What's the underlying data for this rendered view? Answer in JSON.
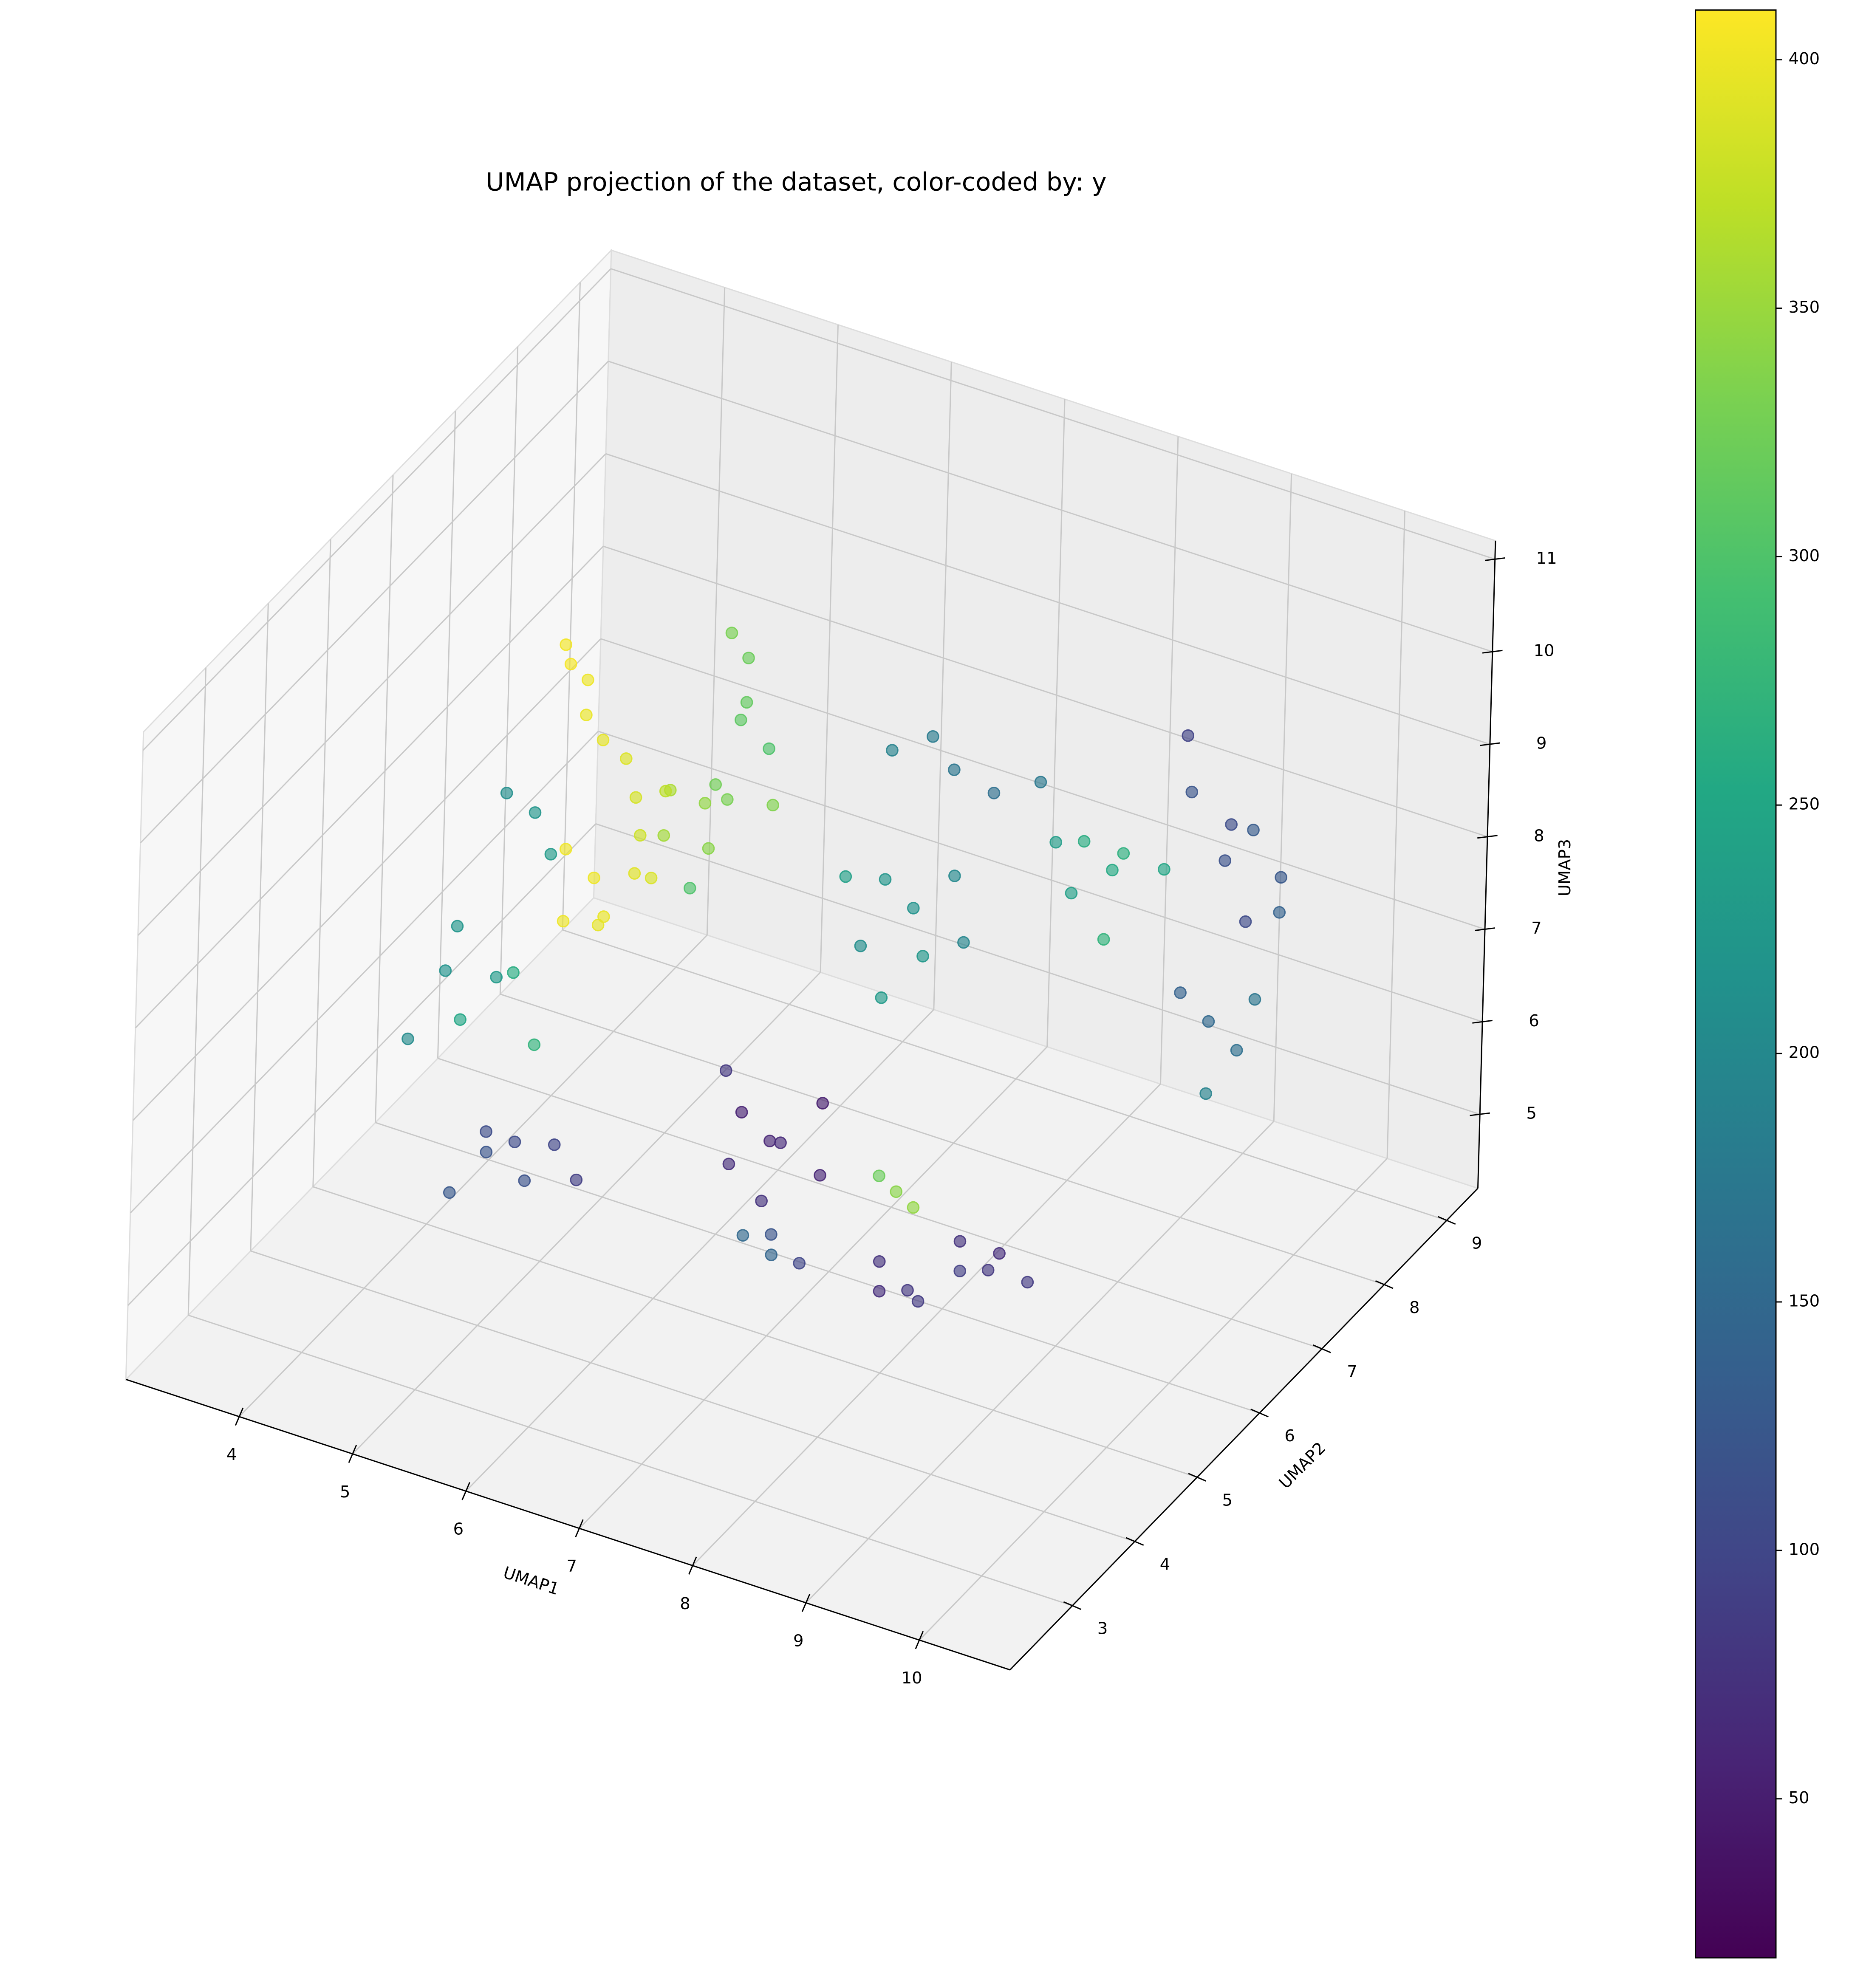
{
  "chart_data": {
    "type": "scatter3d",
    "title": "UMAP projection of the dataset, color-coded by: y",
    "xlabel": "UMAP1",
    "ylabel": "UMAP2",
    "zlabel": "UMAP3",
    "xlim": [
      3.0,
      10.8
    ],
    "ylim": [
      2.0,
      9.5
    ],
    "zlim": [
      4.2,
      11.2
    ],
    "xticks": [
      4,
      5,
      6,
      7,
      8,
      9,
      10
    ],
    "yticks": [
      3,
      4,
      5,
      6,
      7,
      8,
      9
    ],
    "zticks": [
      5,
      6,
      7,
      8,
      9,
      10,
      11
    ],
    "colormap": "viridis",
    "clim": [
      18,
      410
    ],
    "cticks": [
      50,
      100,
      150,
      200,
      250,
      300,
      350,
      400
    ],
    "grid": true,
    "x": [
      4.6,
      4.7,
      4.8,
      4.9,
      5.0,
      5.2,
      4.5,
      5.3,
      4.6,
      4.8,
      5.0,
      4.9,
      5.1,
      4.7,
      5.3,
      6.0,
      6.1,
      6.2,
      6.1,
      6.3,
      6.0,
      6.4,
      5.5,
      5.7,
      5.9,
      5.4,
      6.0,
      5.8,
      5.3,
      4.2,
      4.5,
      4.3,
      4.7,
      4.0,
      4.9,
      3.9,
      4.6,
      4.8,
      5.0,
      4.5,
      4.7,
      4.9,
      4.4,
      5.1,
      4.3,
      5.3,
      6.2,
      6.4,
      6.6,
      6.1,
      6.8,
      6.5,
      6.0,
      6.9,
      7.4,
      7.6,
      7.8,
      7.2,
      7.9,
      7.5,
      8.1,
      7.0,
      6.9,
      7.2,
      7.5,
      7.8,
      8.1,
      8.6,
      8.8,
      9.0,
      8.5,
      9.2,
      8.9,
      8.3,
      9.0,
      9.3,
      9.6,
      9.8,
      9.2,
      9.5,
      9.9,
      8.9,
      9.2,
      9.4,
      9.0,
      9.6,
      9.3,
      9.2,
      9.4,
      9.6,
      9.1,
      9.8,
      8.5,
      8.7,
      8.9,
      8.4,
      7.3,
      7.5,
      7.6,
      7.8,
      8.1,
      8.2,
      8.0
    ],
    "y": [
      6,
      6.1,
      5.9,
      6,
      6.2,
      6,
      6.1,
      5.9,
      6,
      6.1,
      5.9,
      6,
      6.2,
      5.8,
      6.1,
      6,
      6.1,
      5.9,
      6,
      6.1,
      5.8,
      6,
      6,
      6.2,
      5.9,
      6.1,
      6,
      5.8,
      6.3,
      5,
      5.1,
      4.9,
      5,
      5.2,
      5,
      4.8,
      5,
      5.1,
      5,
      5,
      5.1,
      4.9,
      5.2,
      5,
      4.8,
      5,
      6,
      6.1,
      5.9,
      6,
      6.2,
      5.8,
      6.1,
      6,
      6,
      6.1,
      5.9,
      6,
      6.2,
      5.8,
      6,
      6.1,
      7,
      7.1,
      6.9,
      7,
      7.2,
      7,
      7.1,
      6.9,
      7,
      7.2,
      6.8,
      7.1,
      8,
      8.1,
      7.9,
      8,
      8.2,
      8,
      7.8,
      8.1,
      8,
      8.1,
      7.9,
      8,
      7.8,
      4,
      4.1,
      3.9,
      4.2,
      4,
      4,
      4.1,
      3.9,
      4.2,
      4,
      4.1,
      3.9,
      4,
      5,
      5.1,
      4.9
    ],
    "z": [
      9.8,
      9.6,
      9.4,
      9.1,
      8.8,
      8.6,
      9.9,
      8.3,
      7.8,
      7.5,
      7.3,
      7.1,
      7.6,
      7.2,
      7.7,
      10.7,
      10.4,
      10.1,
      9.8,
      9.5,
      9.2,
      9.0,
      8.8,
      8.6,
      8.4,
      8.2,
      8.9,
      8.0,
      8.5,
      7.5,
      7.0,
      6.6,
      7.2,
      6.8,
      6.5,
      6.3,
      9.1,
      8.9,
      8.6,
      5.4,
      5.3,
      5.1,
      5.0,
      5.5,
      4.8,
      5.2,
      5.6,
      5.3,
      5.5,
      5.0,
      5.8,
      4.9,
      5.9,
      5.2,
      8.6,
      8.3,
      8.0,
      7.8,
      8.7,
      7.5,
      8.2,
      8.4,
      9.1,
      9.3,
      9.2,
      9.0,
      9.1,
      8.8,
      8.5,
      8.9,
      8.2,
      8.6,
      8.0,
      8.6,
      8.8,
      8.5,
      8.7,
      8.2,
      8.0,
      7.6,
      8.0,
      9.3,
      6.4,
      6.1,
      6.7,
      6.8,
      5.8,
      6.8,
      6.5,
      6.9,
      6.3,
      6.6,
      6.3,
      6.0,
      6.1,
      5.8,
      6.1,
      5.9,
      6.3,
      6.0,
      6.2,
      6.0,
      6.4
    ],
    "c": [
      405,
      400,
      398,
      395,
      390,
      385,
      403,
      380,
      402,
      400,
      398,
      395,
      392,
      400,
      388,
      330,
      320,
      315,
      310,
      300,
      325,
      335,
      360,
      345,
      340,
      355,
      330,
      300,
      370,
      220,
      230,
      250,
      260,
      215,
      270,
      205,
      210,
      220,
      230,
      110,
      105,
      115,
      120,
      100,
      125,
      90,
      55,
      60,
      65,
      70,
      50,
      75,
      80,
      60,
      220,
      215,
      225,
      210,
      200,
      230,
      195,
      240,
      190,
      180,
      170,
      160,
      175,
      260,
      255,
      265,
      240,
      250,
      270,
      235,
      120,
      110,
      130,
      125,
      115,
      105,
      140,
      95,
      150,
      160,
      140,
      170,
      190,
      75,
      80,
      70,
      90,
      85,
      75,
      80,
      85,
      70,
      150,
      145,
      120,
      100,
      340,
      345,
      320
    ]
  }
}
